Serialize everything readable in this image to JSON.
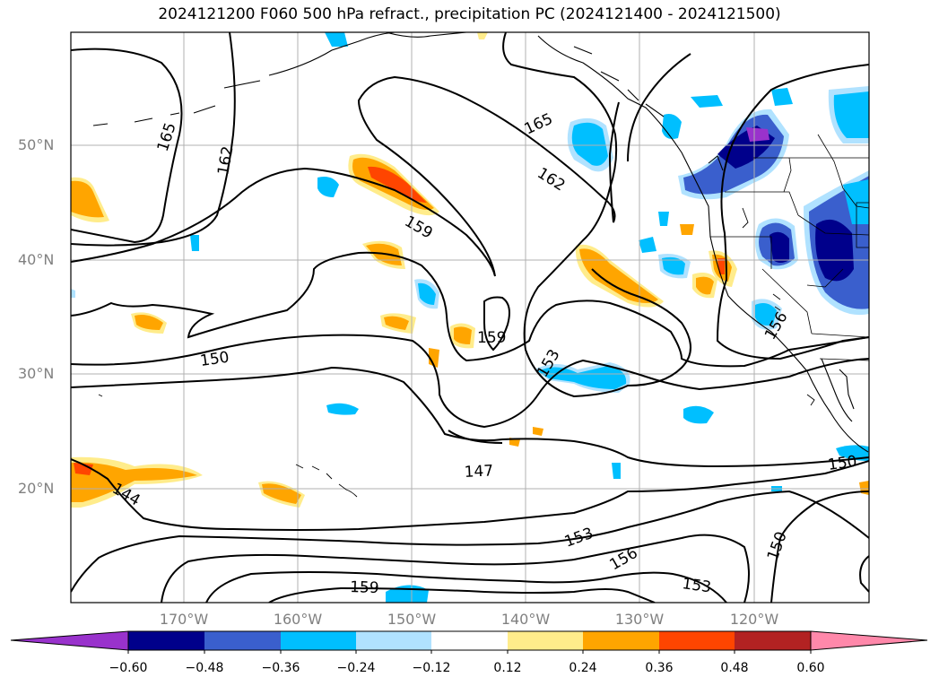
{
  "title": "2024121200 F060 500 hPa refract., precipitation PC (2024121400 - 2024121500)",
  "lat_labels": [
    "50°N",
    "40°N",
    "30°N",
    "20°N"
  ],
  "lon_labels": [
    "170°W",
    "160°W",
    "150°W",
    "140°W",
    "130°W",
    "120°W"
  ],
  "contour_labels": [
    "165",
    "162",
    "165",
    "162",
    "159",
    "159",
    "153",
    "150",
    "156",
    "147",
    "150",
    "144",
    "153",
    "156",
    "159",
    "153",
    "150"
  ],
  "colorbar": {
    "tick_labels": [
      "−0.60",
      "−0.48",
      "−0.36",
      "−0.24",
      "−0.12",
      "0.12",
      "0.24",
      "0.36",
      "0.48",
      "0.60"
    ],
    "colors": [
      "#9932CC",
      "#00008B",
      "#3A5FCD",
      "#00BFFF",
      "#B0E2FF",
      "#FFFFFF",
      "#FFEC8B",
      "#FFA500",
      "#FF4500",
      "#B22222",
      "#FF88AA"
    ]
  }
}
